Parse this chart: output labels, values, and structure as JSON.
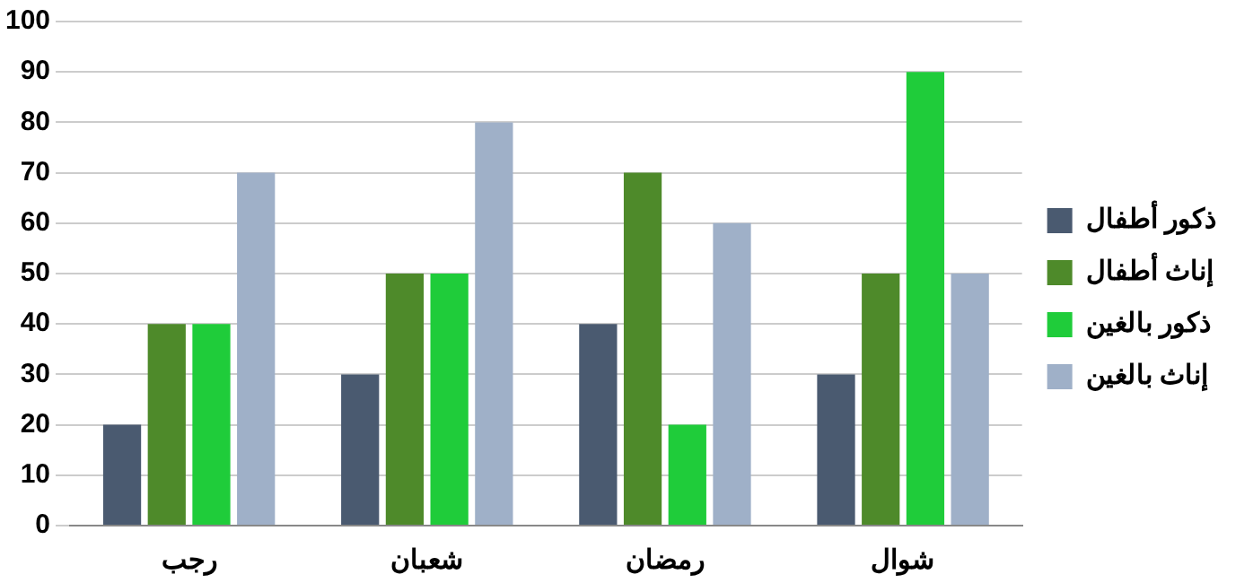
{
  "chart_data": {
    "type": "bar",
    "categories": [
      "رجب",
      "شعبان",
      "رمضان",
      "شوال"
    ],
    "series": [
      {
        "name": "ذكور أطفال",
        "color": "#4a5a70",
        "values": [
          20,
          30,
          40,
          30
        ]
      },
      {
        "name": "إناث أطفال",
        "color": "#4e8a2a",
        "values": [
          40,
          50,
          70,
          50
        ]
      },
      {
        "name": "ذكور بالغين",
        "color": "#1fcc3a",
        "values": [
          40,
          50,
          20,
          90
        ]
      },
      {
        "name": "إناث بالغين",
        "color": "#9fb0c8",
        "values": [
          70,
          80,
          60,
          50
        ]
      }
    ],
    "ylim": [
      0,
      100
    ],
    "yticks": [
      0,
      10,
      20,
      30,
      40,
      50,
      60,
      70,
      80,
      90,
      100
    ],
    "grid": "y",
    "legend": "right"
  }
}
